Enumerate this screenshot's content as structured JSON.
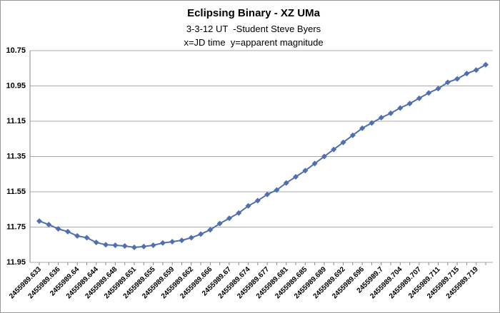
{
  "chart_data": {
    "type": "line",
    "title": "Eclipsing Binary - XZ UMa",
    "subtitle": [
      "3-3-12 UT  -Student Steve Byers",
      "x=JD time  y=apparent magnitude"
    ],
    "categories": [
      "2455989.633",
      null,
      "2455989.636",
      null,
      "2455989.64",
      null,
      "2455989.644",
      null,
      "2455989.648",
      null,
      "2455989.651",
      null,
      "2455989.655",
      null,
      "2455989.659",
      null,
      "2455989.662",
      null,
      "2455989.666",
      null,
      "2455989.67",
      null,
      "2455989.674",
      null,
      "2455989.677",
      null,
      "2455989.681",
      null,
      "2455989.685",
      null,
      "2455989.689",
      null,
      "2455989.692",
      null,
      "2455989.696",
      null,
      "2455989.7",
      null,
      "2455989.704",
      null,
      "2455989.707",
      null,
      "2455989.711",
      null,
      "2455989.715",
      null,
      "2455989.719",
      null
    ],
    "values": [
      11.716,
      11.736,
      11.76,
      11.776,
      11.8,
      11.81,
      11.837,
      11.85,
      11.853,
      11.857,
      11.865,
      11.86,
      11.853,
      11.84,
      11.833,
      11.825,
      11.81,
      11.79,
      11.765,
      11.73,
      11.7,
      11.67,
      11.63,
      11.6,
      11.565,
      11.54,
      11.5,
      11.465,
      11.43,
      11.39,
      11.35,
      11.31,
      11.27,
      11.23,
      11.19,
      11.16,
      11.13,
      11.105,
      11.075,
      11.05,
      11.02,
      10.99,
      10.965,
      10.93,
      10.91,
      10.88,
      10.86,
      10.83
    ],
    "color": "#4f6faf",
    "ylim": [
      11.95,
      10.75
    ],
    "yticks": [
      11.95,
      11.75,
      11.55,
      11.35,
      11.15,
      10.95,
      10.75
    ],
    "grid": true
  }
}
